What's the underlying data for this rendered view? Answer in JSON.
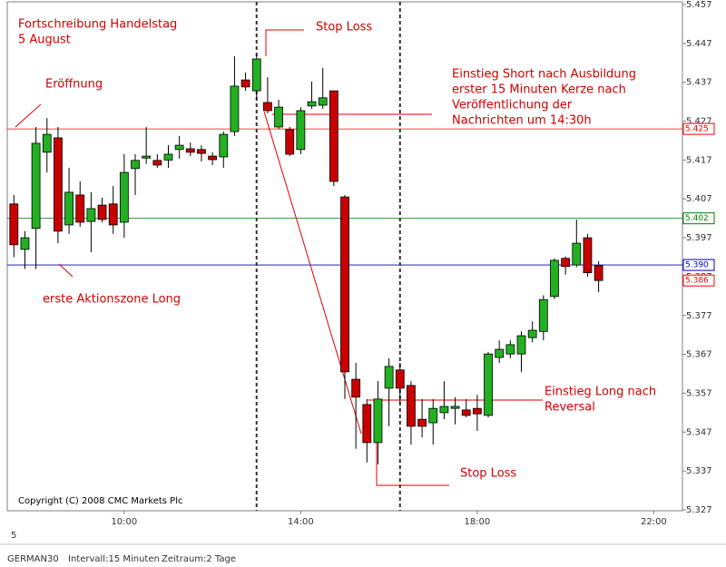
{
  "chart_data": {
    "type": "candlestick",
    "x": [
      7.5,
      7.75,
      8,
      8.25,
      8.5,
      8.75,
      9,
      9.25,
      9.5,
      9.75,
      10,
      10.25,
      10.5,
      10.75,
      11,
      11.25,
      11.5,
      11.75,
      12,
      12.25,
      12.5,
      12.75,
      13,
      13.25,
      13.5,
      13.75,
      14,
      14.25,
      14.5,
      14.75,
      15,
      15.25,
      15.5,
      15.75,
      16,
      16.25,
      16.5,
      16.75,
      17,
      17.25,
      17.5,
      17.75,
      18,
      18.25,
      18.5,
      18.75,
      19,
      19.25,
      19.5,
      19.75,
      20,
      20.25,
      20.5,
      20.75
    ],
    "open": [
      5.4057,
      5.394,
      5.3994,
      5.419,
      5.4227,
      5.4003,
      5.408,
      5.4012,
      5.4054,
      5.4057,
      5.401,
      5.4148,
      5.4175,
      5.4169,
      5.417,
      5.4197,
      5.4199,
      5.4197,
      5.418,
      5.4178,
      5.4243,
      5.4376,
      5.4348,
      5.4318,
      5.4255,
      5.4248,
      5.4197,
      5.4309,
      5.4311,
      5.4348,
      5.4075,
      5.3606,
      5.3541,
      5.3443,
      5.3583,
      5.363,
      5.359,
      5.3503,
      5.3494,
      5.352,
      5.3531,
      5.3527,
      5.3531,
      5.3513,
      5.3662,
      5.3671,
      5.3671,
      5.3713,
      5.3729,
      5.3819,
      5.3917,
      5.39,
      5.397,
      5.3898
    ],
    "high": [
      5.408,
      5.3987,
      5.4255,
      5.4278,
      5.4255,
      5.415,
      5.4115,
      5.4087,
      5.4073,
      5.4103,
      5.4185,
      5.4185,
      5.4255,
      5.4185,
      5.4208,
      5.4232,
      5.4215,
      5.4208,
      5.419,
      5.4243,
      5.4437,
      5.4395,
      5.4442,
      5.4383,
      5.4325,
      5.4255,
      5.4306,
      5.4372,
      5.4407,
      5.4348,
      5.408,
      5.3648,
      5.3555,
      5.3601,
      5.366,
      5.3648,
      5.3601,
      5.3555,
      5.3555,
      5.3601,
      5.356,
      5.3555,
      5.3566,
      5.3676,
      5.3706,
      5.3706,
      5.3729,
      5.3755,
      5.3822,
      5.3917,
      5.3922,
      5.4017,
      5.398,
      5.391
    ],
    "low": [
      5.392,
      5.389,
      5.389,
      5.4138,
      5.3956,
      5.398,
      5.3998,
      5.3933,
      5.401,
      5.398,
      5.397,
      5.408,
      5.416,
      5.415,
      5.415,
      5.4173,
      5.418,
      5.4166,
      5.4157,
      5.415,
      5.4232,
      5.4348,
      5.4325,
      5.429,
      5.425,
      5.418,
      5.4185,
      5.4302,
      5.4302,
      5.4103,
      5.3555,
      5.3427,
      5.3392,
      5.3387,
      5.3485,
      5.3543,
      5.3438,
      5.3457,
      5.3438,
      5.3503,
      5.349,
      5.3508,
      5.3473,
      5.3508,
      5.3648,
      5.366,
      5.3625,
      5.3701,
      5.3706,
      5.3812,
      5.3875,
      5.3894,
      5.387,
      5.383
    ],
    "close": [
      5.3952,
      5.397,
      5.4213,
      5.4236,
      5.3987,
      5.4087,
      5.401,
      5.4045,
      5.4017,
      5.4003,
      5.4138,
      5.4169,
      5.418,
      5.4157,
      5.4185,
      5.4208,
      5.419,
      5.4187,
      5.4171,
      5.4236,
      5.436,
      5.4358,
      5.443,
      5.4297,
      5.4306,
      5.4185,
      5.4297,
      5.432,
      5.433,
      5.4115,
      5.3625,
      5.356,
      5.3443,
      5.3555,
      5.3639,
      5.3583,
      5.3485,
      5.3485,
      5.3531,
      5.3536,
      5.3536,
      5.3513,
      5.3517,
      5.3671,
      5.3683,
      5.3695,
      5.3718,
      5.3732,
      5.3811,
      5.3912,
      5.3896,
      5.3956,
      5.388,
      5.386
    ],
    "up_color": "#22b022",
    "down_color": "#c80000",
    "xlim": [
      7.35,
      22.65
    ],
    "xticks": [
      {
        "value": 10,
        "label": "10:00"
      },
      {
        "value": 14,
        "label": "14:00"
      },
      {
        "value": 18,
        "label": "18:00"
      },
      {
        "value": 22,
        "label": "22:00"
      }
    ],
    "ylim": [
      5.327,
      5.457
    ],
    "yticks": [
      5.457,
      5.447,
      5.437,
      5.427,
      5.417,
      5.407,
      5.397,
      5.387,
      5.377,
      5.367,
      5.357,
      5.347,
      5.337,
      5.327
    ],
    "grid": false,
    "day_label": "5",
    "vlines": [
      13,
      16.25
    ],
    "hlines": [
      {
        "value": 5.425,
        "label": "5.425",
        "color": "#ff0000",
        "line": true
      },
      {
        "value": 5.402,
        "label": "5.402",
        "color": "#008000",
        "line": true
      },
      {
        "value": 5.39,
        "label": "5.390",
        "color": "#0000c0",
        "line": true
      },
      {
        "value": 5.386,
        "label": "5.386",
        "color": "#ff0000",
        "line": false
      }
    ],
    "annotations": [
      {
        "lines": [
          "Fortschreibung Handelstag",
          "5 August"
        ]
      },
      {
        "lines": [
          "Eröffnung"
        ]
      },
      {
        "lines": [
          "Stop Loss"
        ]
      },
      {
        "lines": [
          "Einstieg Short nach Ausbildung",
          "erster 15 Minuten Kerze nach",
          "Veröffentlichung der",
          "Nachrichten um 14:30h"
        ]
      },
      {
        "lines": [
          "erste Aktionszone Long"
        ]
      },
      {
        "lines": [
          "Einstieg Long nach",
          "Reversal"
        ]
      },
      {
        "lines": [
          "Stop Loss"
        ]
      }
    ],
    "copyright": "Copyright (C) 2008 CMC Markets Plc"
  },
  "footer": {
    "symbol": "GERMAN30",
    "interval": "Intervall:15 Minuten",
    "range": "Zeitraum:2 Tage"
  }
}
